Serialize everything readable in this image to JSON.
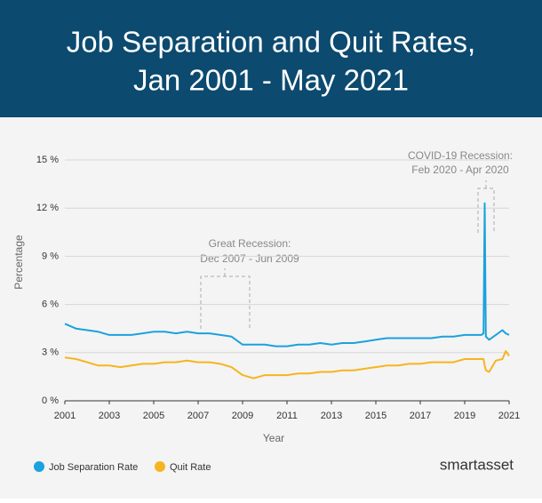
{
  "chart_data": {
    "type": "line",
    "title": [
      "Job Separation and Quit Rates,",
      "Jan 2001 - May 2021"
    ],
    "x_label": "Year",
    "y_label": "Percentage",
    "x": [
      2001,
      2001.5,
      2002,
      2002.5,
      2003,
      2003.5,
      2004,
      2004.5,
      2005,
      2005.5,
      2006,
      2006.5,
      2007,
      2007.5,
      2008,
      2008.5,
      2009,
      2009.5,
      2010,
      2010.5,
      2011,
      2011.5,
      2012,
      2012.5,
      2013,
      2013.5,
      2014,
      2014.5,
      2015,
      2015.5,
      2016,
      2016.5,
      2017,
      2017.5,
      2018,
      2018.5,
      2019,
      2019.5,
      2019.75,
      2019.85,
      2019.9,
      2019.95,
      2020.1,
      2020.4,
      2020.7,
      2020.85,
      2021
    ],
    "series": [
      {
        "name": "Job Separation Rate",
        "color": "#1ba1dd",
        "values": [
          4.8,
          4.5,
          4.4,
          4.3,
          4.1,
          4.1,
          4.1,
          4.2,
          4.3,
          4.3,
          4.2,
          4.3,
          4.2,
          4.2,
          4.1,
          4.0,
          3.5,
          3.5,
          3.5,
          3.4,
          3.4,
          3.5,
          3.5,
          3.6,
          3.5,
          3.6,
          3.6,
          3.7,
          3.8,
          3.9,
          3.9,
          3.9,
          3.9,
          3.9,
          4.0,
          4.0,
          4.1,
          4.1,
          4.1,
          4.2,
          12.3,
          4.0,
          3.8,
          4.1,
          4.4,
          4.2,
          4.1
        ]
      },
      {
        "name": "Quit Rate",
        "color": "#f6b51e",
        "values": [
          2.7,
          2.6,
          2.4,
          2.2,
          2.2,
          2.1,
          2.2,
          2.3,
          2.3,
          2.4,
          2.4,
          2.5,
          2.4,
          2.4,
          2.3,
          2.1,
          1.6,
          1.4,
          1.6,
          1.6,
          1.6,
          1.7,
          1.7,
          1.8,
          1.8,
          1.9,
          1.9,
          2.0,
          2.1,
          2.2,
          2.2,
          2.3,
          2.3,
          2.4,
          2.4,
          2.4,
          2.6,
          2.6,
          2.6,
          2.6,
          2.2,
          1.9,
          1.8,
          2.5,
          2.6,
          3.1,
          2.8
        ]
      }
    ],
    "xlim": [
      2001,
      2021
    ],
    "xticks": [
      2001,
      2003,
      2005,
      2007,
      2009,
      2011,
      2013,
      2015,
      2017,
      2019,
      2021
    ],
    "ylim": [
      0,
      15
    ],
    "yticks": [
      {
        "value": 0,
        "label": "0 %"
      },
      {
        "value": 3,
        "label": "3 %"
      },
      {
        "value": 6,
        "label": "6 %"
      },
      {
        "value": 9,
        "label": "9 %"
      },
      {
        "value": 12,
        "label": "12 %"
      },
      {
        "value": 15,
        "label": "15 %"
      }
    ],
    "grid": true,
    "annotations": [
      {
        "lines": [
          "Great Recession:",
          "Dec 2007 - Jun 2009"
        ]
      },
      {
        "lines": [
          "COVID-19 Recession:",
          "Feb 2020 - Apr 2020"
        ]
      }
    ],
    "legend": "bottom-left",
    "logo": "smartasset"
  }
}
